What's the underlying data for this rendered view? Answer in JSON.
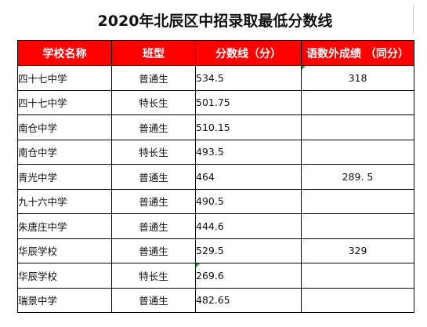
{
  "title": "2020年北辰区中招录取最低分数线",
  "headers": [
    "学校名称",
    "班型",
    "分数线（分）",
    "语数外成绩 （同分）"
  ],
  "rows": [
    {
      "school": "四十七中学",
      "class_type": "普通生",
      "score": "534.5",
      "extra": "318"
    },
    {
      "school": "四十七中学",
      "class_type": "特长生",
      "score": "501.75",
      "extra": ""
    },
    {
      "school": "南仓中学",
      "class_type": "普通生",
      "score": "510.15",
      "extra": ""
    },
    {
      "school": "南仓中学",
      "class_type": "特长生",
      "score": "493.5",
      "extra": ""
    },
    {
      "school": "青光中学",
      "class_type": "普通生",
      "score": "464",
      "extra": "289. 5"
    },
    {
      "school": "九十六中学",
      "class_type": "普通生",
      "score": "490.5",
      "extra": ""
    },
    {
      "school": "朱唐庄中学",
      "class_type": "普通生",
      "score": "444.6",
      "extra": ""
    },
    {
      "school": "华辰学校",
      "class_type": "普通生",
      "score": "529.5",
      "extra": "329"
    },
    {
      "school": "华辰学校",
      "class_type": "特长生",
      "score": "269.6",
      "extra": ""
    },
    {
      "school": "瑞景中学",
      "class_type": "普通生",
      "score": "482.65",
      "extra": ""
    }
  ],
  "colors": {
    "header_bg": "#ff0000",
    "header_text": "#ffffff",
    "comment_marker": "#1a9a2a"
  }
}
